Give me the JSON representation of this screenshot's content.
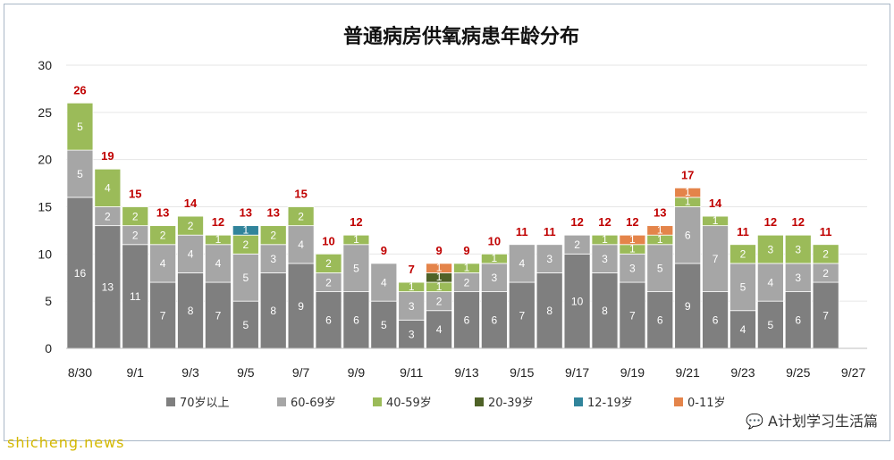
{
  "chart_data": {
    "type": "bar",
    "stacked": true,
    "title": "普通病房供氧病患年龄分布",
    "xlabel": "",
    "ylabel": "",
    "ylim": [
      0,
      30
    ],
    "yticks": [
      0,
      5,
      10,
      15,
      20,
      25,
      30
    ],
    "grid": true,
    "legend_position": "bottom",
    "categories": [
      "8/30",
      "8/31",
      "9/1",
      "9/2",
      "9/3",
      "9/4",
      "9/5",
      "9/6",
      "9/7",
      "9/8",
      "9/9",
      "9/10",
      "9/11",
      "9/12",
      "9/13",
      "9/14",
      "9/15",
      "9/16",
      "9/17",
      "9/18",
      "9/19",
      "9/20",
      "9/21",
      "9/22",
      "9/23",
      "9/24",
      "9/25",
      "9/26",
      "9/27"
    ],
    "x_tick_labels": [
      "8/30",
      "9/1",
      "9/3",
      "9/5",
      "9/7",
      "9/9",
      "9/11",
      "9/13",
      "9/15",
      "9/17",
      "9/19",
      "9/21",
      "9/23",
      "9/25",
      "9/27"
    ],
    "series": [
      {
        "name": "70岁以上",
        "color": "#7f7f7f",
        "values": [
          16,
          13,
          11,
          7,
          8,
          7,
          5,
          8,
          9,
          6,
          6,
          5,
          3,
          4,
          6,
          6,
          7,
          8,
          10,
          8,
          7,
          6,
          9,
          6,
          4,
          5,
          6,
          7,
          0
        ]
      },
      {
        "name": "60-69岁",
        "color": "#a6a6a6",
        "values": [
          5,
          2,
          2,
          4,
          4,
          4,
          5,
          3,
          4,
          2,
          5,
          4,
          3,
          2,
          2,
          3,
          4,
          3,
          2,
          3,
          3,
          5,
          6,
          7,
          5,
          4,
          3,
          2,
          0
        ]
      },
      {
        "name": "40-59岁",
        "color": "#9bbb59",
        "values": [
          5,
          4,
          2,
          2,
          2,
          1,
          2,
          2,
          2,
          2,
          1,
          0,
          1,
          1,
          1,
          1,
          0,
          0,
          0,
          1,
          1,
          1,
          1,
          1,
          2,
          3,
          3,
          2,
          0
        ]
      },
      {
        "name": "20-39岁",
        "color": "#4f6228",
        "values": [
          0,
          0,
          0,
          0,
          0,
          0,
          0,
          0,
          0,
          0,
          0,
          0,
          0,
          1,
          0,
          0,
          0,
          0,
          0,
          0,
          0,
          0,
          0,
          0,
          0,
          0,
          0,
          0,
          0
        ]
      },
      {
        "name": "12-19岁",
        "color": "#31849b",
        "values": [
          0,
          0,
          0,
          0,
          0,
          0,
          1,
          0,
          0,
          0,
          0,
          0,
          0,
          0,
          0,
          0,
          0,
          0,
          0,
          0,
          0,
          0,
          0,
          0,
          0,
          0,
          0,
          0,
          0
        ]
      },
      {
        "name": "0-11岁",
        "color": "#e4844a",
        "values": [
          0,
          0,
          0,
          0,
          0,
          0,
          0,
          0,
          0,
          0,
          0,
          0,
          0,
          1,
          0,
          0,
          0,
          0,
          0,
          0,
          1,
          1,
          1,
          0,
          0,
          0,
          0,
          0,
          0
        ]
      }
    ],
    "totals": [
      26,
      19,
      15,
      13,
      14,
      12,
      13,
      13,
      15,
      10,
      12,
      9,
      7,
      9,
      9,
      10,
      11,
      11,
      12,
      12,
      12,
      13,
      17,
      14,
      11,
      12,
      12,
      11,
      null
    ]
  },
  "watermarks": {
    "wechat": "A计划学习生活篇",
    "site": "shicheng.news"
  }
}
